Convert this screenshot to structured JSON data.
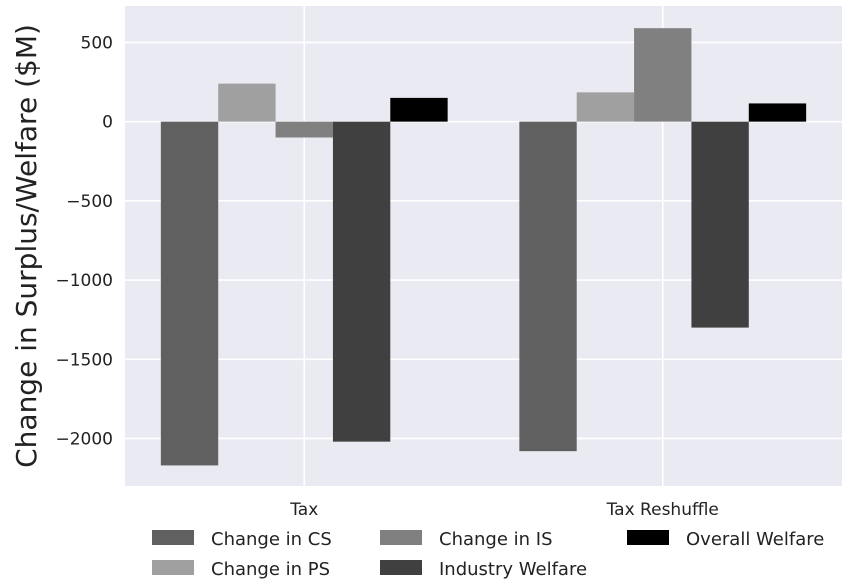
{
  "chart_data": {
    "type": "bar",
    "title": "",
    "xlabel": "",
    "ylabel": "Change in Surplus/Welfare ($M)",
    "categories": [
      "Tax",
      "Tax Reshuffle"
    ],
    "series": [
      {
        "name": "Change in CS",
        "values": [
          -2170,
          -2080
        ],
        "color": "#606060"
      },
      {
        "name": "Change in PS",
        "values": [
          240,
          185
        ],
        "color": "#a0a0a0"
      },
      {
        "name": "Change in IS",
        "values": [
          -100,
          590
        ],
        "color": "#808080"
      },
      {
        "name": "Industry Welfare",
        "values": [
          -2020,
          -1300
        ],
        "color": "#404040"
      },
      {
        "name": "Overall Welfare",
        "values": [
          150,
          115
        ],
        "color": "#000000"
      }
    ],
    "ylim": [
      -2300,
      730
    ],
    "yticks": [
      500,
      0,
      -500,
      -1000,
      -1500,
      -2000
    ],
    "ytick_labels": [
      "500",
      "0",
      "−500",
      "−1000",
      "−1500",
      "−2000"
    ],
    "grid": true,
    "legend_placement": "bottom",
    "colors": {
      "background": "#eaeaf2",
      "grid": "#ffffff"
    }
  }
}
